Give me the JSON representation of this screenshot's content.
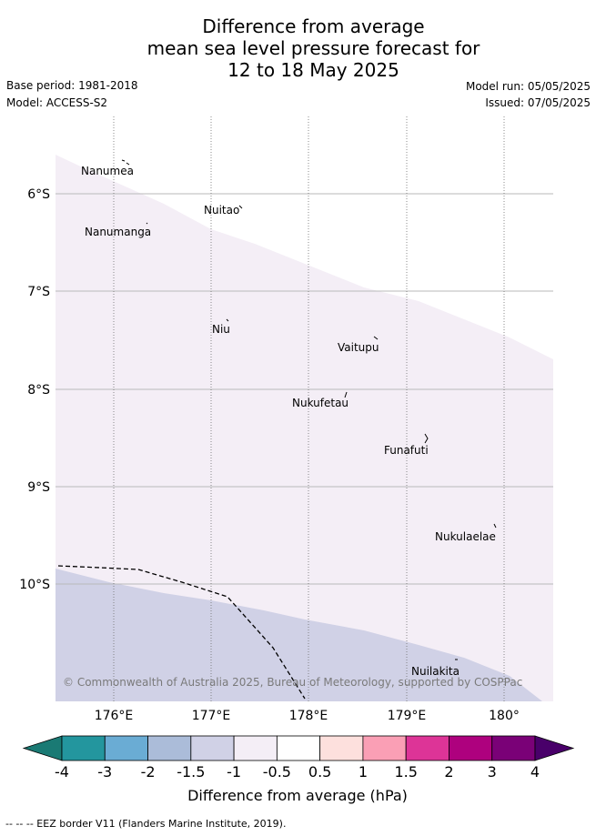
{
  "title": {
    "line1": "Difference from average",
    "line2": "mean sea level pressure forecast for",
    "line3": "12 to 18 May 2025"
  },
  "meta": {
    "base_period": "Base period: 1981-2018",
    "model": "Model: ACCESS-S2",
    "model_run": "Model run: 05/05/2025",
    "issued": "Issued: 07/05/2025"
  },
  "map": {
    "lat_labels": [
      "6°S",
      "7°S",
      "8°S",
      "9°S",
      "10°S"
    ],
    "lon_labels": [
      "176°E",
      "177°E",
      "178°E",
      "179°E",
      "180°"
    ],
    "places": [
      {
        "name": "Nanumea"
      },
      {
        "name": "Nuitao"
      },
      {
        "name": "Nanumanga"
      },
      {
        "name": "Niu"
      },
      {
        "name": "Vaitupu"
      },
      {
        "name": "Nukufetau"
      },
      {
        "name": "Funafuti"
      },
      {
        "name": "Nukulaelae"
      },
      {
        "name": "Nuilakita"
      }
    ],
    "credit": "© Commonwealth of Australia 2025, Bureau of Meteorology, supported by COSPPac",
    "colors": {
      "band_neg_1_to_neg_0_5": "#f4eef6",
      "band_neg_1_5_to_neg_1": "#d0d1e6",
      "eez_line": "#000000"
    }
  },
  "colorbar": {
    "ticks": [
      "-4",
      "-3",
      "-2",
      "-1.5",
      "-1",
      "-0.5",
      "0.5",
      "1",
      "1.5",
      "2",
      "3",
      "4"
    ],
    "colors": [
      "#1a7a74",
      "#23969e",
      "#6aacd4",
      "#abbcd9",
      "#d0d1e6",
      "#f4eef6",
      "#ffffff",
      "#fde0dd",
      "#fa9fb5",
      "#dd3497",
      "#ae017e",
      "#7a0177",
      "#49006a"
    ],
    "label": "Difference from average (hPa)"
  },
  "footer": "--  --  -- EEZ border V11 (Flanders Marine Institute, 2019)."
}
